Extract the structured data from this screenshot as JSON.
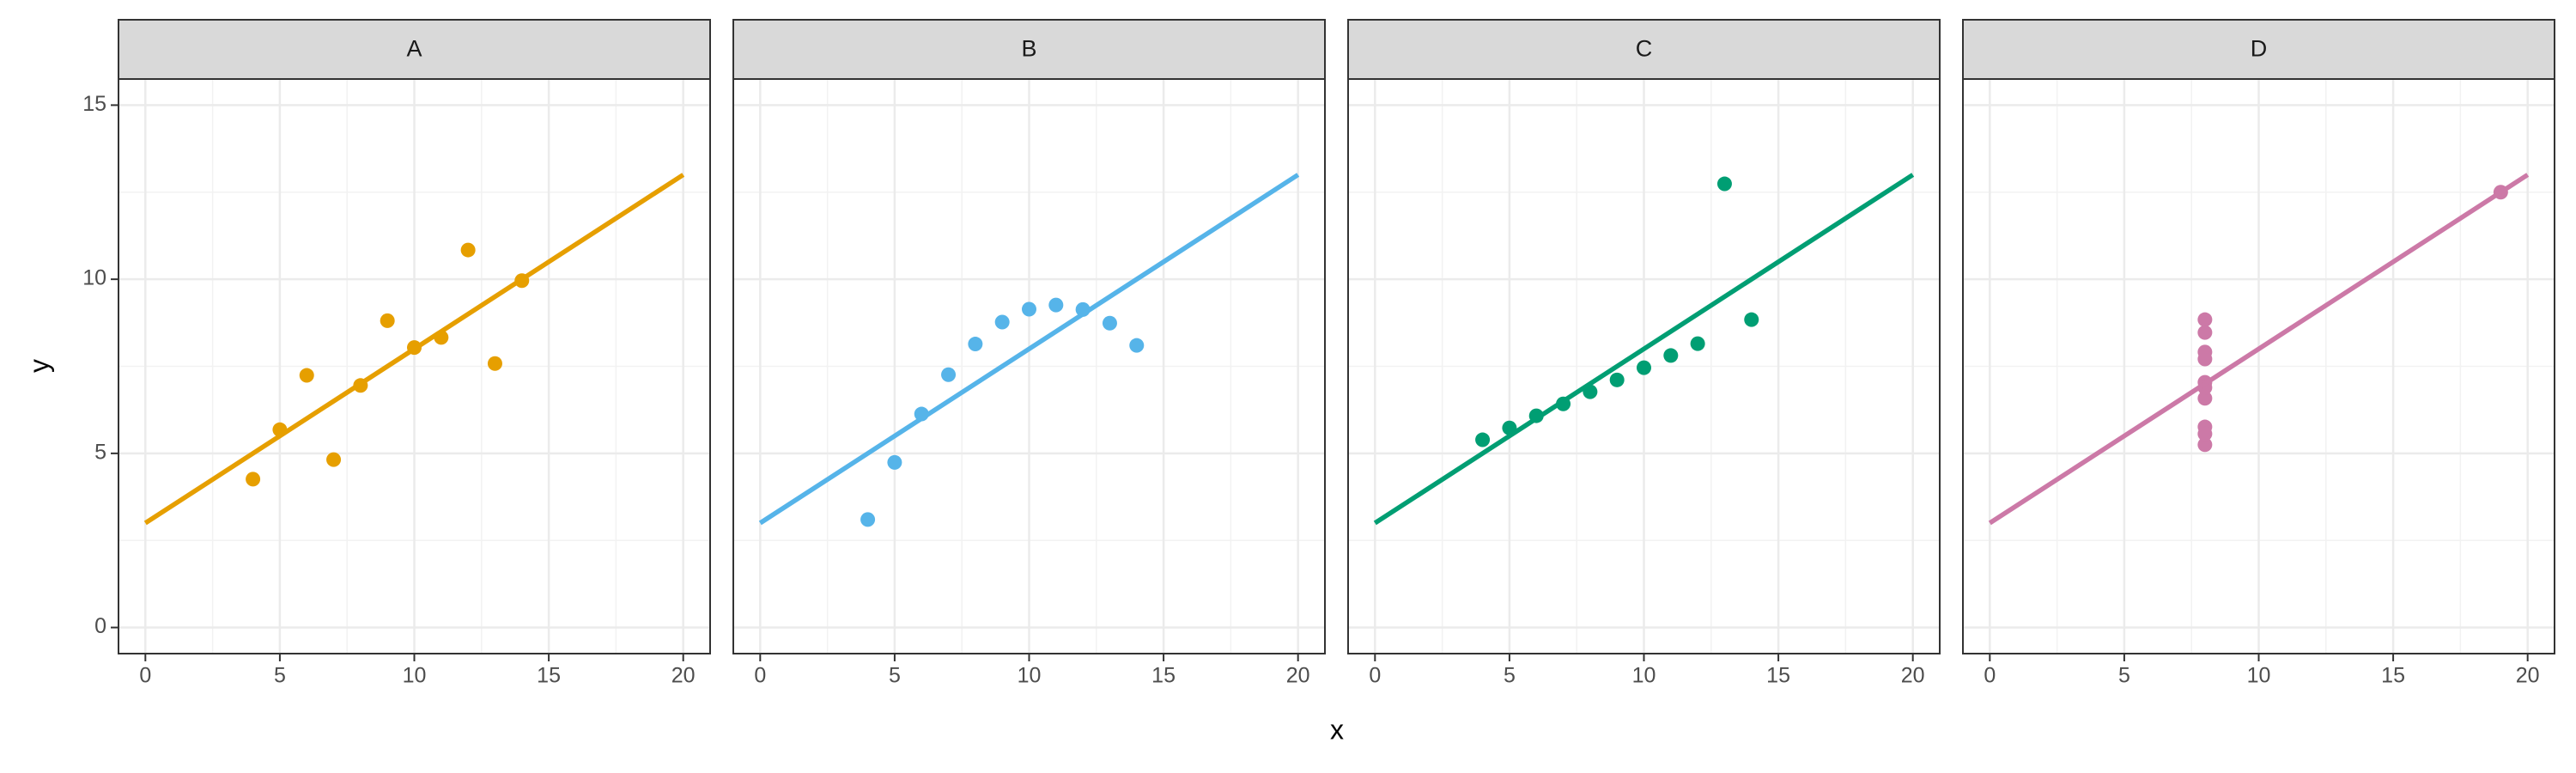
{
  "axis_labels": {
    "x": "x",
    "y": "y"
  },
  "chart_data": [
    {
      "type": "scatter",
      "title": "A",
      "color": "#E69F00",
      "x": [
        10,
        8,
        13,
        9,
        11,
        14,
        6,
        4,
        12,
        7,
        5
      ],
      "values": [
        8.04,
        6.95,
        7.58,
        8.81,
        8.33,
        9.96,
        7.24,
        4.26,
        10.84,
        4.82,
        5.68
      ],
      "fit": {
        "x": [
          0,
          20
        ],
        "values": [
          3,
          13
        ]
      },
      "xlim": [
        -1,
        21
      ],
      "ylim": [
        -0.75,
        15.75
      ],
      "xticks": [
        0,
        5,
        10,
        15,
        20
      ],
      "yticks": [
        0,
        5,
        10,
        15
      ],
      "grid": true
    },
    {
      "type": "scatter",
      "title": "B",
      "color": "#56B4E9",
      "x": [
        10,
        8,
        13,
        9,
        11,
        14,
        6,
        4,
        12,
        7,
        5
      ],
      "values": [
        9.14,
        8.14,
        8.74,
        8.77,
        9.26,
        8.1,
        6.13,
        3.1,
        9.13,
        7.26,
        4.74
      ],
      "fit": {
        "x": [
          0,
          20
        ],
        "values": [
          3,
          13
        ]
      },
      "xlim": [
        -1,
        21
      ],
      "ylim": [
        -0.75,
        15.75
      ],
      "xticks": [
        0,
        5,
        10,
        15,
        20
      ],
      "yticks": [
        0,
        5,
        10,
        15
      ],
      "grid": true
    },
    {
      "type": "scatter",
      "title": "C",
      "color": "#009E73",
      "x": [
        10,
        8,
        13,
        9,
        11,
        14,
        6,
        4,
        12,
        7,
        5
      ],
      "values": [
        7.46,
        6.77,
        12.74,
        7.11,
        7.81,
        8.84,
        6.08,
        5.39,
        8.15,
        6.42,
        5.73
      ],
      "fit": {
        "x": [
          0,
          20
        ],
        "values": [
          3,
          13
        ]
      },
      "xlim": [
        -1,
        21
      ],
      "ylim": [
        -0.75,
        15.75
      ],
      "xticks": [
        0,
        5,
        10,
        15,
        20
      ],
      "yticks": [
        0,
        5,
        10,
        15
      ],
      "grid": true
    },
    {
      "type": "scatter",
      "title": "D",
      "color": "#CC79A7",
      "x": [
        8,
        8,
        8,
        8,
        8,
        8,
        8,
        19,
        8,
        8,
        8
      ],
      "values": [
        6.58,
        5.76,
        7.71,
        8.84,
        8.47,
        7.04,
        5.25,
        12.5,
        5.56,
        7.91,
        6.89
      ],
      "fit": {
        "x": [
          0,
          20
        ],
        "values": [
          3,
          13
        ]
      },
      "xlim": [
        -1,
        21
      ],
      "ylim": [
        -0.75,
        15.75
      ],
      "xticks": [
        0,
        5,
        10,
        15,
        20
      ],
      "yticks": [
        0,
        5,
        10,
        15
      ],
      "grid": true
    }
  ]
}
